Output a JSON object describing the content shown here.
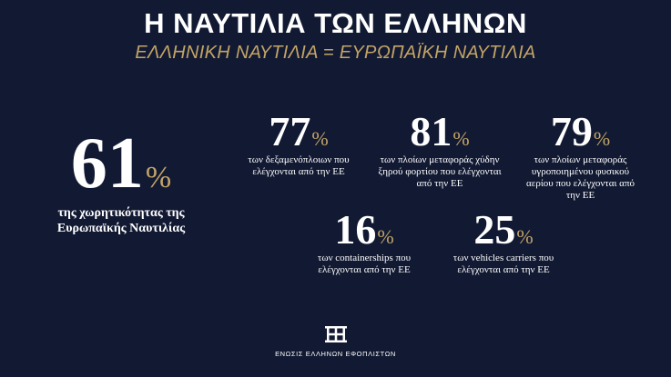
{
  "header": {
    "title": "Η ΝΑΥΤΙΛΙΑ ΤΩΝ ΕΛΛΗΝΩΝ",
    "subtitle": "ΕΛΛΗΝΙΚΗ ΝΑΥΤΙΛΙΑ = ΕΥΡΩΠΑΪΚΗ ΝΑΥΤΙΛΙΑ"
  },
  "colors": {
    "background": "#121a33",
    "accent": "#c4a466",
    "text": "#ffffff"
  },
  "main_stat": {
    "value": "61",
    "unit": "%",
    "description": "της χωρητικότητας της Ευρωπαϊκής Ναυτιλίας"
  },
  "stats": [
    {
      "value": "77",
      "unit": "%",
      "description": "των δεξαμενόπλοιων που ελέγχονται από την ΕΕ"
    },
    {
      "value": "81",
      "unit": "%",
      "description": "των πλοίων μεταφοράς χύδην ξηρού φορτίου που ελέγχονται από την ΕΕ"
    },
    {
      "value": "79",
      "unit": "%",
      "description": "των πλοίων μεταφοράς υγροποιημένου φυσικού αερίου που ελέγχονται από την ΕΕ"
    },
    {
      "value": "16",
      "unit": "%",
      "description": "των containerships που ελέγχονται από την ΕΕ"
    },
    {
      "value": "25",
      "unit": "%",
      "description": "των vehicles carriers που ελέγχονται από την ΕΕ"
    }
  ],
  "footer": {
    "logo_icon": "union-emblem-icon",
    "logo_text": "ΕΝΩΣΙΣ ΕΛΛΗΝΩΝ ΕΦΟΠΛΙΣΤΩΝ"
  }
}
